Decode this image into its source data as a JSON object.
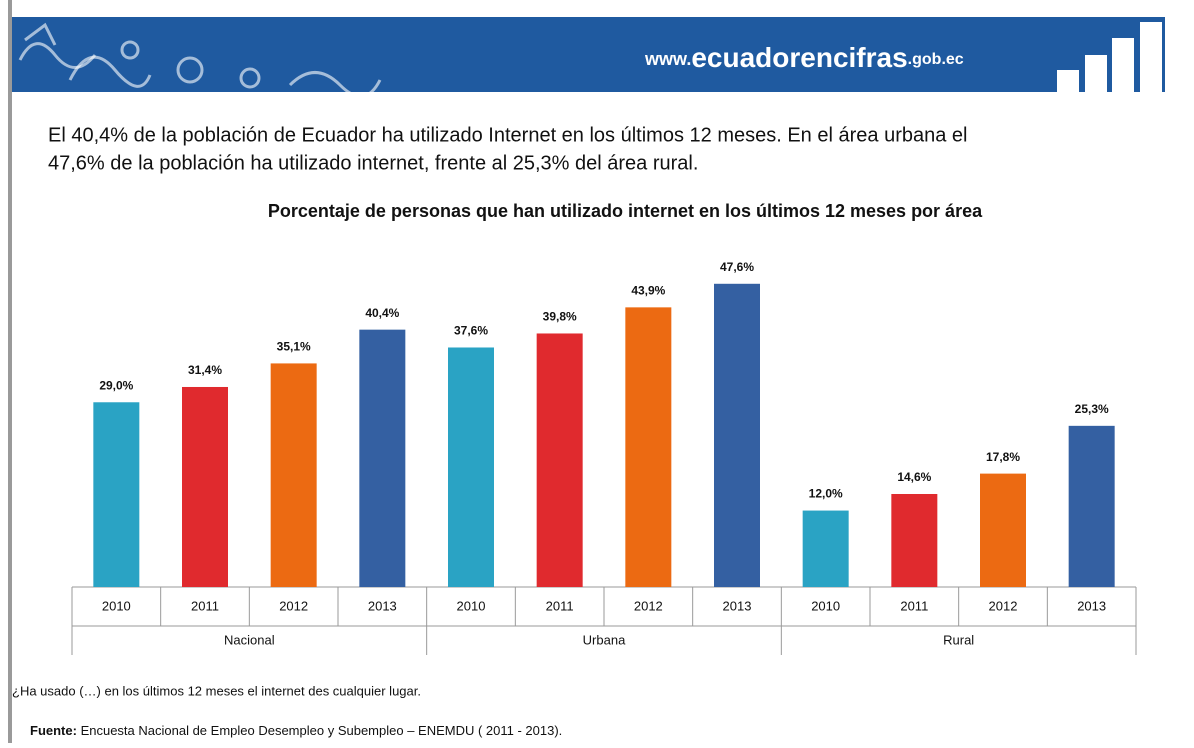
{
  "header": {
    "url_prefix": "www.",
    "url_main": "ecuadorencifras",
    "url_suffix": ".gob.ec"
  },
  "intro": {
    "line1": "El 40,4% de la población de Ecuador ha utilizado Internet en los últimos 12 meses. En el área urbana el",
    "line2": "47,6% de la población ha utilizado internet, frente al 25,3% del área rural."
  },
  "chart_data": {
    "type": "bar",
    "title": "Porcentaje  de personas que han utilizado internet en los últimos 12 meses por área",
    "categories": [
      "Nacional",
      "Urbana",
      "Rural"
    ],
    "series": [
      {
        "name": "2010",
        "color": "#2aa3c4",
        "values": [
          29.0,
          37.6,
          12.0
        ],
        "value_labels": [
          "29,0%",
          "37,6%",
          "12,0%"
        ]
      },
      {
        "name": "2011",
        "color": "#e02a2e",
        "values": [
          31.4,
          39.8,
          14.6
        ],
        "value_labels": [
          "31,4%",
          "39,8%",
          "14,6%"
        ]
      },
      {
        "name": "2012",
        "color": "#ec6a12",
        "values": [
          35.1,
          43.9,
          17.8
        ],
        "value_labels": [
          "35,1%",
          "43,9%",
          "17,8%"
        ]
      },
      {
        "name": "2013",
        "color": "#3460a2",
        "values": [
          40.4,
          47.6,
          25.3
        ],
        "value_labels": [
          "40,4%",
          "47,6%",
          "25,3%"
        ]
      }
    ]
  },
  "footnote": "¿Ha usado (…) en los últimos 12 meses el internet des cualquier lugar.",
  "source": {
    "label": "Fuente:",
    "text": " Encuesta Nacional de Empleo Desempleo y Subempleo – ENEMDU ( 2011 - 2013)."
  }
}
